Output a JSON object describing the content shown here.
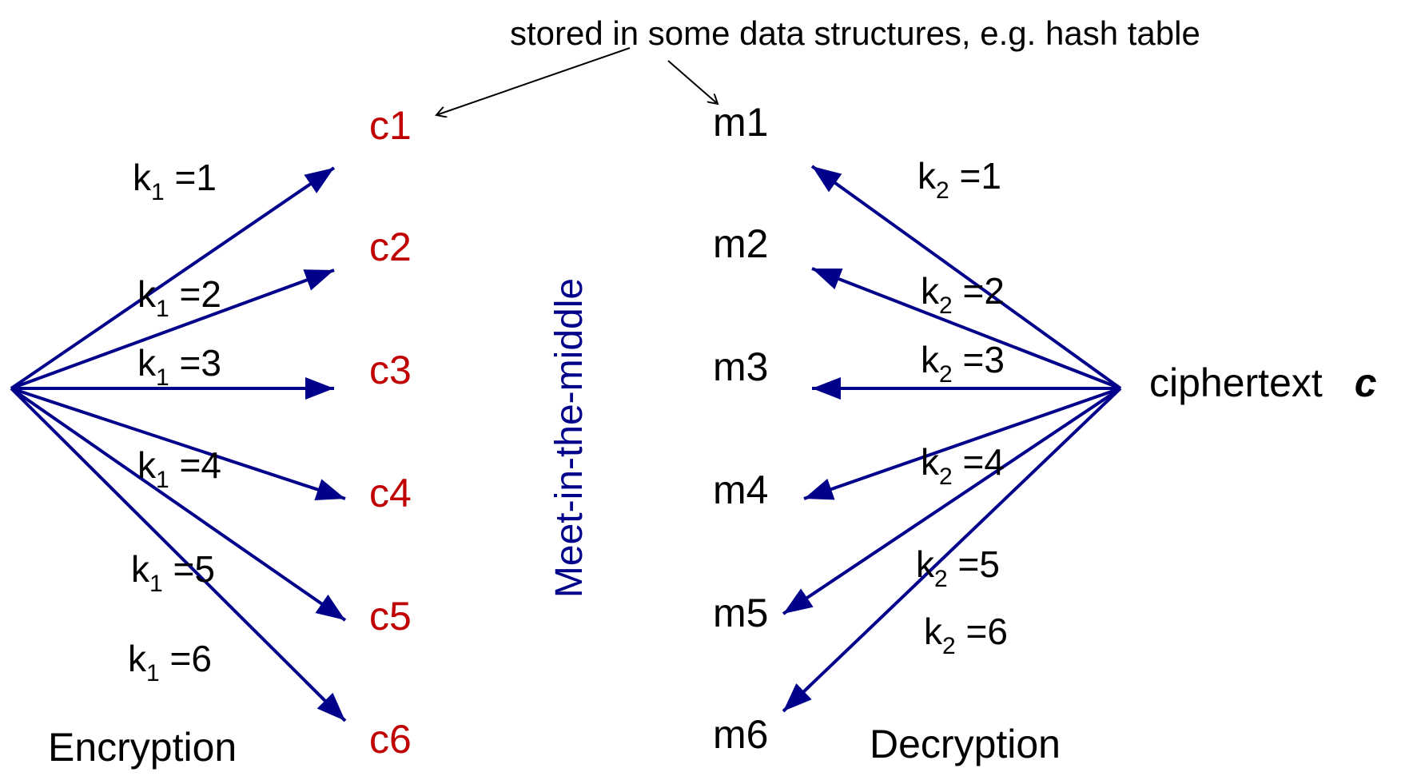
{
  "annotation": "stored in some data structures, e.g. hash table",
  "vertical_label": "Meet-in-the-middle",
  "left_caption": "Encryption",
  "right_caption": "Decryption",
  "ciphertext": {
    "label": "ciphertext",
    "symbol": "c"
  },
  "ciphertexts": [
    "c1",
    "c2",
    "c3",
    "c4",
    "c5",
    "c6"
  ],
  "messages": [
    "m1",
    "m2",
    "m3",
    "m4",
    "m5",
    "m6"
  ],
  "k1_labels": [
    {
      "k": "k",
      "sub": "1",
      "val": " =1"
    },
    {
      "k": "k",
      "sub": "1",
      "val": " =2"
    },
    {
      "k": "k",
      "sub": "1",
      "val": " =3"
    },
    {
      "k": "k",
      "sub": "1",
      "val": " =4"
    },
    {
      "k": "k",
      "sub": "1",
      "val": " =5"
    },
    {
      "k": "k",
      "sub": "1",
      "val": " =6"
    }
  ],
  "k2_labels": [
    {
      "k": "k",
      "sub": "2",
      "val": " =1"
    },
    {
      "k": "k",
      "sub": "2",
      "val": " =2"
    },
    {
      "k": "k",
      "sub": "2",
      "val": " =3"
    },
    {
      "k": "k",
      "sub": "2",
      "val": " =4"
    },
    {
      "k": "k",
      "sub": "2",
      "val": " =5"
    },
    {
      "k": "k",
      "sub": "2",
      "val": " =6"
    }
  ],
  "colors": {
    "arrow": "#00008b",
    "ciphertext_text": "#c00000",
    "vertical_label": "#00008b",
    "text": "#000000"
  }
}
